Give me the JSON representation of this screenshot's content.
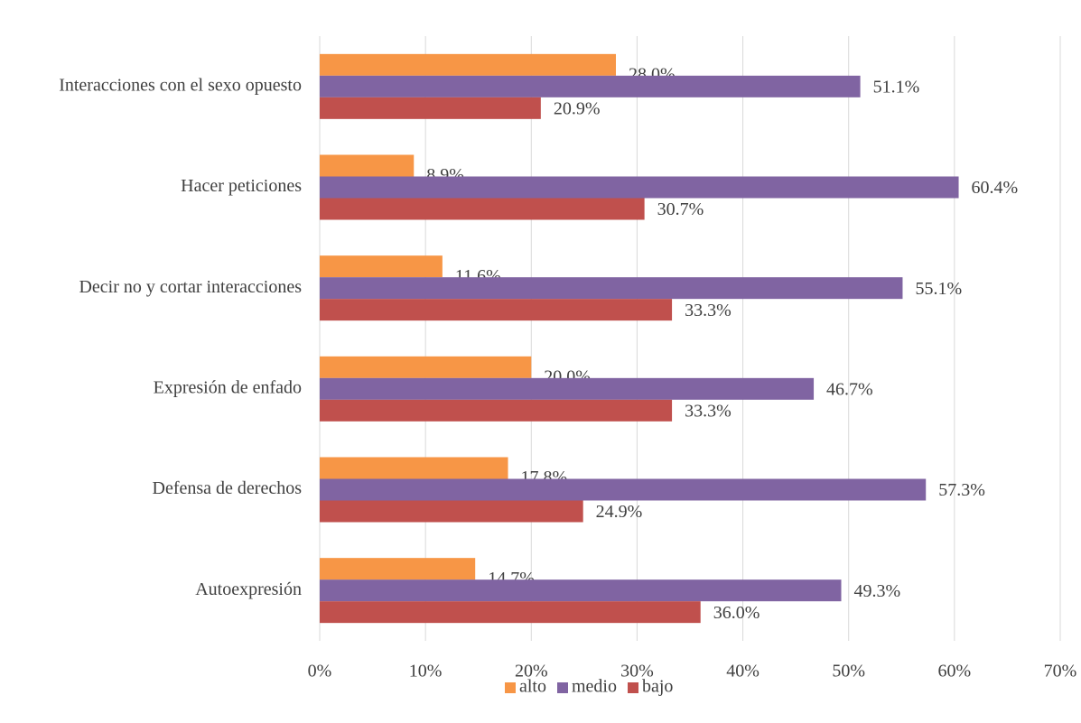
{
  "chart_data": {
    "type": "hbar",
    "categories": [
      "Interacciones con el sexo opuesto",
      "Hacer peticiones",
      "Decir no y cortar interacciones",
      "Expresión de enfado",
      "Defensa de derechos",
      "Autoexpresión"
    ],
    "series": [
      {
        "name": "alto",
        "color": "#f79646",
        "values": [
          28.0,
          8.9,
          11.6,
          20.0,
          17.8,
          14.7
        ],
        "value_labels": [
          "28.0%",
          "8.9%",
          "11.6%",
          "20.0%",
          "17.8%",
          "14.7%"
        ]
      },
      {
        "name": "medio",
        "color": "#8064a2",
        "values": [
          51.1,
          60.4,
          55.1,
          46.7,
          57.3,
          49.3
        ],
        "value_labels": [
          "51.1%",
          "60.4%",
          "55.1%",
          "46.7%",
          "57.3%",
          "49.3%"
        ]
      },
      {
        "name": "bajo",
        "color": "#c0504d",
        "values": [
          20.9,
          30.7,
          33.3,
          33.3,
          24.9,
          36.0
        ],
        "value_labels": [
          "20.9%",
          "30.7%",
          "33.3%",
          "33.3%",
          "24.9%",
          "36.0%"
        ]
      }
    ],
    "xlim": [
      0,
      70
    ],
    "xticks": [
      {
        "value": 0,
        "label": "0%"
      },
      {
        "value": 10,
        "label": "10%"
      },
      {
        "value": 20,
        "label": "20%"
      },
      {
        "value": 30,
        "label": "30%"
      },
      {
        "value": 40,
        "label": "40%"
      },
      {
        "value": 50,
        "label": "50%"
      },
      {
        "value": 60,
        "label": "60%"
      },
      {
        "value": 70,
        "label": "70%"
      }
    ],
    "grid": true,
    "legend": "bottom"
  }
}
